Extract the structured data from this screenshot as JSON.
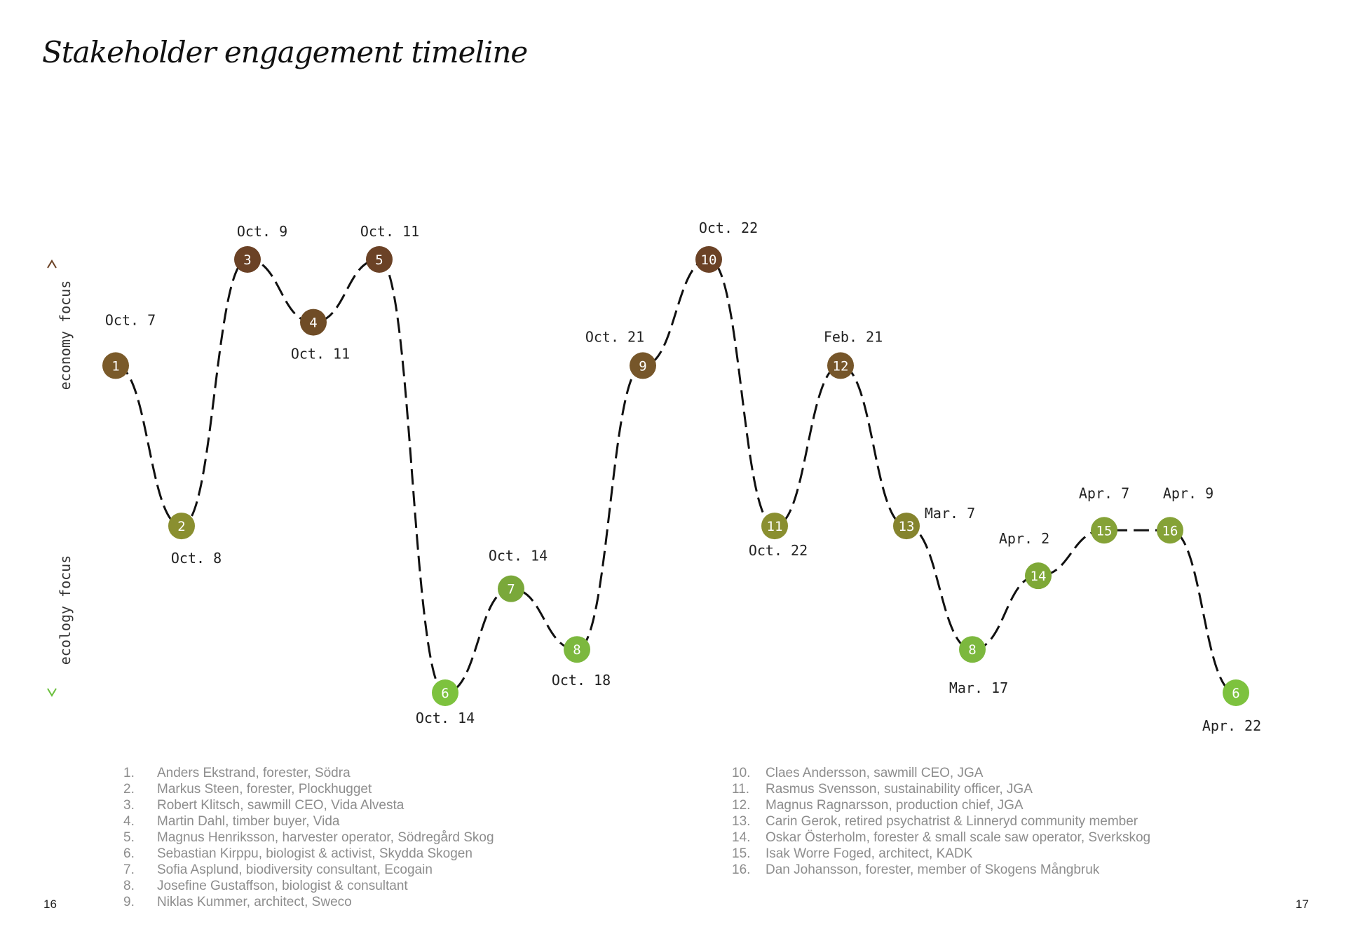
{
  "title": "Stakeholder engagement timeline",
  "axis": {
    "top_label": "economy focus",
    "bottom_label": "ecology focus",
    "top_color": "#6b4226",
    "bottom_color": "#6abf3c"
  },
  "points": [
    {
      "num": "1",
      "date": "Oct. 7",
      "level": 0.755,
      "color": "#7a5a2a"
    },
    {
      "num": "2",
      "date": "Oct. 8",
      "level": 0.385,
      "color": "#8a8f30"
    },
    {
      "num": "3",
      "date": "Oct. 9",
      "level": 1.0,
      "color": "#6b4226"
    },
    {
      "num": "4",
      "date": "Oct. 11",
      "level": 0.855,
      "color": "#6f4c26"
    },
    {
      "num": "5",
      "date": "Oct. 11",
      "level": 1.0,
      "color": "#6b4226"
    },
    {
      "num": "6",
      "date": "Oct. 14",
      "level": 0.0,
      "color": "#7dc23e"
    },
    {
      "num": "7",
      "date": "Oct. 14",
      "level": 0.24,
      "color": "#7aa83a"
    },
    {
      "num": "8",
      "date": "Oct. 18",
      "level": 0.1,
      "color": "#7cb83e"
    },
    {
      "num": "9",
      "date": "Oct. 21",
      "level": 0.755,
      "color": "#76562a"
    },
    {
      "num": "10",
      "date": "Oct. 22",
      "level": 1.0,
      "color": "#6b4226"
    },
    {
      "num": "11",
      "date": "Oct. 22",
      "level": 0.385,
      "color": "#8a8f30"
    },
    {
      "num": "12",
      "date": "Feb. 21",
      "level": 0.755,
      "color": "#76562a"
    },
    {
      "num": "13",
      "date": "Mar. 7",
      "level": 0.385,
      "color": "#85842e"
    },
    {
      "num": "8",
      "date": "Mar. 17",
      "level": 0.1,
      "color": "#7cb83e"
    },
    {
      "num": "14",
      "date": "Apr. 2",
      "level": 0.27,
      "color": "#7ea837"
    },
    {
      "num": "15",
      "date": "Apr. 7",
      "level": 0.375,
      "color": "#85a237"
    },
    {
      "num": "16",
      "date": "Apr. 9",
      "level": 0.375,
      "color": "#85a237"
    },
    {
      "num": "6",
      "date": "Apr. 22",
      "level": 0.0,
      "color": "#7dc23e"
    }
  ],
  "legend_left": [
    {
      "num": "1.",
      "text": "Anders Ekstrand, forester, Södra"
    },
    {
      "num": "2.",
      "text": "Markus Steen, forester, Plockhugget"
    },
    {
      "num": "3.",
      "text": "Robert Klitsch, sawmill CEO, Vida Alvesta"
    },
    {
      "num": "4.",
      "text": "Martin Dahl, timber buyer, Vida"
    },
    {
      "num": "5.",
      "text": "Magnus Henriksson, harvester operator, Södregård Skog"
    },
    {
      "num": "6.",
      "text": "Sebastian Kirppu, biologist & activist, Skydda Skogen"
    },
    {
      "num": "7.",
      "text": "Sofia Asplund, biodiversity consultant, Ecogain"
    },
    {
      "num": "8.",
      "text": "Josefine Gustaffson, biologist & consultant"
    },
    {
      "num": "9.",
      "text": "Niklas Kummer, architect, Sweco"
    }
  ],
  "legend_right": [
    {
      "num": "10.",
      "text": "Claes Andersson, sawmill CEO, JGA"
    },
    {
      "num": "11.",
      "text": "Rasmus Svensson, sustainability officer, JGA"
    },
    {
      "num": "12.",
      "text": "Magnus Ragnarsson, production chief, JGA"
    },
    {
      "num": "13.",
      "text": "Carin Gerok, retired psychatrist & Linneryd community member"
    },
    {
      "num": "14.",
      "text": "Oskar Österholm, forester & small scale saw operator, Sverkskog"
    },
    {
      "num": "15.",
      "text": "Isak Worre Foged, architect, KADK"
    },
    {
      "num": "16.",
      "text": "Dan Johansson, forester, member of Skogens Mångbruk"
    }
  ],
  "page_left": "16",
  "page_right": "17"
}
